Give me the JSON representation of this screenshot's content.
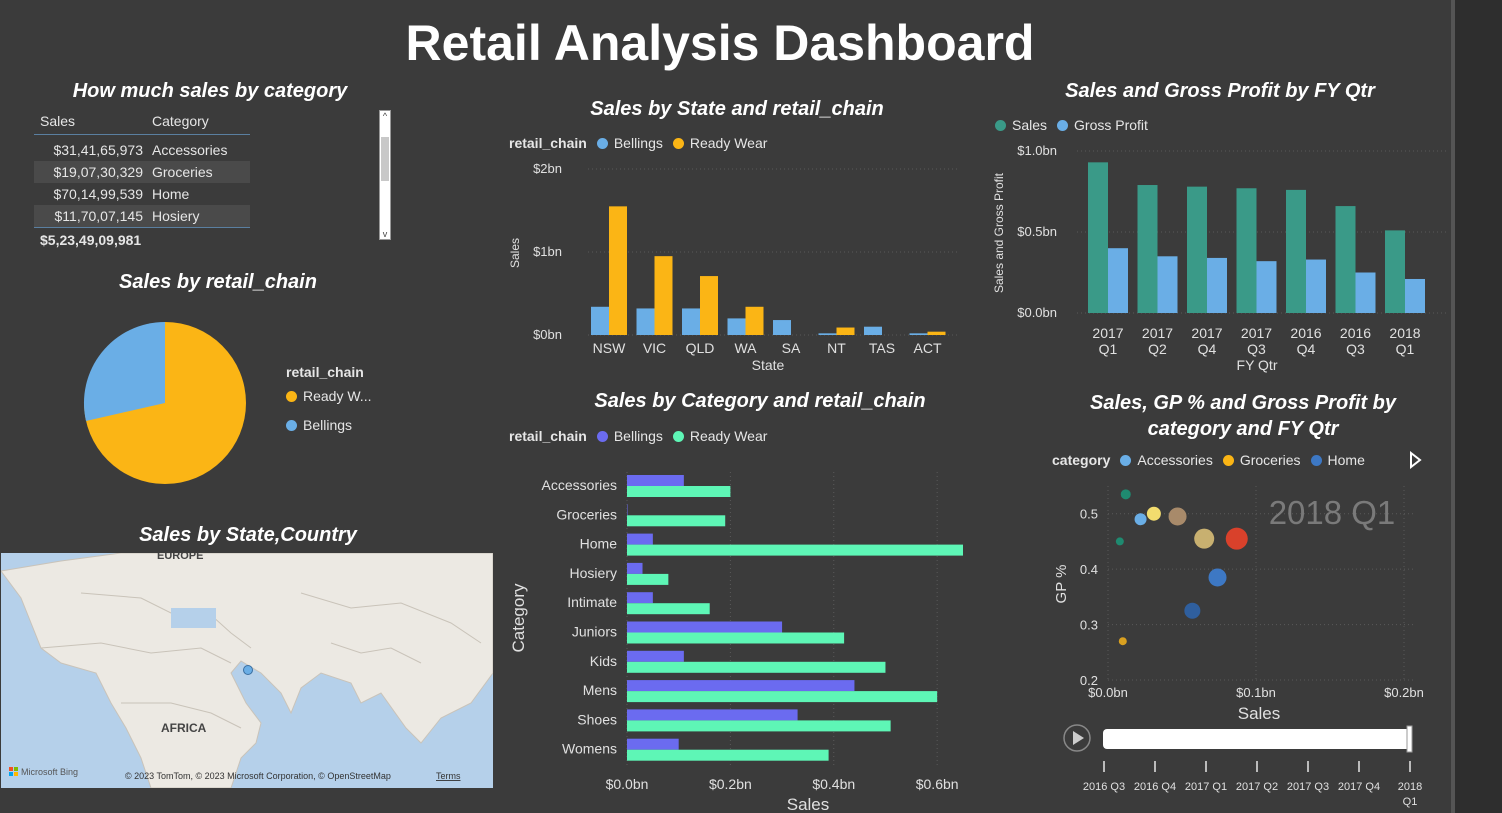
{
  "dashboard_title": "Retail Analysis Dashboard",
  "colors": {
    "background": "#3b3b3b",
    "bellings": "#6aaee6",
    "ready_wear": "#fbb515",
    "sales_teal": "#3a9a88",
    "gross_profit_blue": "#6aaee6",
    "cat_bellings": "#6b6bf0",
    "cat_ready_wear": "#5ef6b6"
  },
  "sales_table": {
    "title": "How much sales by category",
    "col_sales": "Sales",
    "col_category": "Category",
    "rows": [
      {
        "sales": "$31,41,65,973",
        "category": "Accessories"
      },
      {
        "sales": "$19,07,30,329",
        "category": "Groceries"
      },
      {
        "sales": "$70,14,99,539",
        "category": "Home"
      },
      {
        "sales": "$11,70,07,145",
        "category": "Hosiery"
      }
    ],
    "total": "$5,23,49,09,981"
  },
  "pie": {
    "title": "Sales by retail_chain",
    "legend_title": "retail_chain",
    "items": [
      {
        "label": "Ready W...",
        "color": "#fbb515"
      },
      {
        "label": "Bellings",
        "color": "#6aaee6"
      }
    ]
  },
  "map": {
    "title": "Sales by State,Country",
    "labels": {
      "europe": "EUROPE",
      "africa": "AFRICA"
    },
    "logo_text": "Microsoft Bing",
    "copyright": "© 2023 TomTom, © 2023 Microsoft Corporation, © OpenStreetMap",
    "terms": "Terms"
  },
  "state_chart_title": "Sales by State and retail_chain",
  "state_chart_legend": {
    "title": "retail_chain",
    "a": "Bellings",
    "b": "Ready Wear"
  },
  "fyqtr_chart_title": "Sales and Gross Profit by FY Qtr",
  "fyqtr_chart_legend": {
    "a": "Sales",
    "b": "Gross Profit"
  },
  "category_chart_title": "Sales by Category and retail_chain",
  "category_chart_legend": {
    "title": "retail_chain",
    "a": "Bellings",
    "b": "Ready Wear"
  },
  "scatter_title_1": "Sales, GP % and Gross Profit by",
  "scatter_title_2": "category and FY Qtr",
  "scatter_legend": {
    "title": "category",
    "a": "Accessories",
    "b": "Groceries",
    "c": "Home"
  },
  "scatter_watermark": "2018 Q1",
  "chart_data": [
    {
      "type": "pie",
      "title": "Sales by retail_chain",
      "categories": [
        "Ready Wear",
        "Bellings"
      ],
      "values": [
        72,
        28
      ]
    },
    {
      "type": "bar",
      "title": "Sales by State and retail_chain",
      "xlabel": "State",
      "ylabel": "Sales",
      "ylim": [
        0,
        2
      ],
      "yticks": [
        "$0bn",
        "$1bn",
        "$2bn"
      ],
      "categories": [
        "NSW",
        "VIC",
        "QLD",
        "WA",
        "SA",
        "NT",
        "TAS",
        "ACT"
      ],
      "series": [
        {
          "name": "Bellings",
          "values": [
            0.34,
            0.32,
            0.32,
            0.2,
            0.18,
            0.02,
            0.1,
            0.02
          ]
        },
        {
          "name": "Ready Wear",
          "values": [
            1.55,
            0.95,
            0.71,
            0.34,
            0.0,
            0.09,
            0.0,
            0.04
          ]
        }
      ]
    },
    {
      "type": "bar",
      "title": "Sales and Gross Profit by FY Qtr",
      "xlabel": "FY Qtr",
      "ylabel": "Sales and Gross Profit",
      "ylim": [
        0,
        1
      ],
      "yticks": [
        "$0.0bn",
        "$0.5bn",
        "$1.0bn"
      ],
      "categories": [
        [
          "2017",
          "Q1"
        ],
        [
          "2017",
          "Q2"
        ],
        [
          "2017",
          "Q4"
        ],
        [
          "2017",
          "Q3"
        ],
        [
          "2016",
          "Q4"
        ],
        [
          "2016",
          "Q3"
        ],
        [
          "2018",
          "Q1"
        ]
      ],
      "series": [
        {
          "name": "Sales",
          "values": [
            0.93,
            0.79,
            0.78,
            0.77,
            0.76,
            0.66,
            0.51
          ]
        },
        {
          "name": "Gross Profit",
          "values": [
            0.4,
            0.35,
            0.34,
            0.32,
            0.33,
            0.25,
            0.21
          ]
        }
      ]
    },
    {
      "type": "bar",
      "orientation": "horizontal",
      "title": "Sales by Category and retail_chain",
      "xlabel": "Sales",
      "ylabel": "Category",
      "xlim": [
        0,
        0.65
      ],
      "xticks": [
        "$0.0bn",
        "$0.2bn",
        "$0.4bn",
        "$0.6bn"
      ],
      "categories": [
        "Accessories",
        "Groceries",
        "Home",
        "Hosiery",
        "Intimate",
        "Juniors",
        "Kids",
        "Mens",
        "Shoes",
        "Womens"
      ],
      "series": [
        {
          "name": "Bellings",
          "values": [
            0.11,
            0.0,
            0.05,
            0.03,
            0.05,
            0.3,
            0.11,
            0.44,
            0.33,
            0.1
          ]
        },
        {
          "name": "Ready Wear",
          "values": [
            0.2,
            0.19,
            0.65,
            0.08,
            0.16,
            0.42,
            0.5,
            0.6,
            0.51,
            0.39
          ]
        }
      ]
    },
    {
      "type": "scatter",
      "title": "Sales, GP % and Gross Profit by category and FY Qtr",
      "xlabel": "Sales",
      "ylabel": "GP %",
      "xlim": [
        0,
        0.2
      ],
      "ylim": [
        0.2,
        0.55
      ],
      "xticks": [
        "$0.0bn",
        "$0.1bn",
        "$0.2bn"
      ],
      "yticks": [
        "0.2",
        "0.3",
        "0.4",
        "0.5"
      ],
      "points": [
        {
          "x": 0.012,
          "y": 0.535,
          "size": 5,
          "color": "#1f8a70"
        },
        {
          "x": 0.008,
          "y": 0.45,
          "size": 4,
          "color": "#1f8a70"
        },
        {
          "x": 0.022,
          "y": 0.49,
          "size": 6,
          "color": "#6aaee6"
        },
        {
          "x": 0.031,
          "y": 0.5,
          "size": 7,
          "color": "#f2dc6e"
        },
        {
          "x": 0.047,
          "y": 0.495,
          "size": 9,
          "color": "#a88a6a"
        },
        {
          "x": 0.065,
          "y": 0.455,
          "size": 10,
          "color": "#c8b070"
        },
        {
          "x": 0.087,
          "y": 0.455,
          "size": 11,
          "color": "#d9412b"
        },
        {
          "x": 0.074,
          "y": 0.385,
          "size": 9,
          "color": "#3d78c4"
        },
        {
          "x": 0.057,
          "y": 0.325,
          "size": 8,
          "color": "#2f5f9e"
        },
        {
          "x": 0.01,
          "y": 0.27,
          "size": 4,
          "color": "#d9a020"
        }
      ],
      "play_axis": [
        "2016 Q3",
        "2016 Q4",
        "2017 Q1",
        "2017 Q2",
        "2017 Q3",
        "2017 Q4",
        "2018 Q1"
      ],
      "current_frame": "2018 Q1"
    }
  ]
}
